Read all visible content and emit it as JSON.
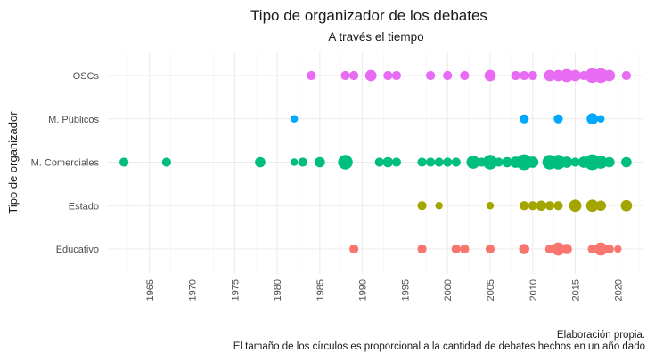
{
  "chart_data": {
    "type": "scatter",
    "title": "Tipo de organizador de los debates",
    "subtitle": "A través el tiempo",
    "xlabel": "",
    "ylabel": "Tipo de organizador",
    "xlim": [
      1960,
      2023
    ],
    "x_ticks": [
      1965,
      1970,
      1975,
      1980,
      1985,
      1990,
      1995,
      2000,
      2005,
      2010,
      2015,
      2020
    ],
    "categories": [
      "OSCs",
      "M. Públicos",
      "M. Comerciales",
      "Estado",
      "Educativo"
    ],
    "grid": true,
    "legend": "none",
    "caption_lines": [
      "Elaboración propia.",
      "El tamaño de los círculos es proporcional a la cantidad de debates hechos en un año dado"
    ],
    "series": [
      {
        "category": "OSCs",
        "color": "#e76bf3",
        "points": [
          {
            "x": 1984,
            "size": 1
          },
          {
            "x": 1988,
            "size": 1
          },
          {
            "x": 1989,
            "size": 1
          },
          {
            "x": 1991,
            "size": 2
          },
          {
            "x": 1993,
            "size": 1
          },
          {
            "x": 1994,
            "size": 1
          },
          {
            "x": 1998,
            "size": 1
          },
          {
            "x": 2000,
            "size": 1
          },
          {
            "x": 2002,
            "size": 1
          },
          {
            "x": 2005,
            "size": 2
          },
          {
            "x": 2008,
            "size": 1
          },
          {
            "x": 2009,
            "size": 1
          },
          {
            "x": 2010,
            "size": 1
          },
          {
            "x": 2012,
            "size": 2
          },
          {
            "x": 2013,
            "size": 2
          },
          {
            "x": 2014,
            "size": 3
          },
          {
            "x": 2015,
            "size": 2
          },
          {
            "x": 2016,
            "size": 1
          },
          {
            "x": 2017,
            "size": 4
          },
          {
            "x": 2018,
            "size": 4
          },
          {
            "x": 2019,
            "size": 2
          },
          {
            "x": 2021,
            "size": 1
          }
        ]
      },
      {
        "category": "M. Públicos",
        "color": "#00a9ff",
        "points": [
          {
            "x": 1982,
            "size": 0.5
          },
          {
            "x": 2009,
            "size": 1
          },
          {
            "x": 2013,
            "size": 1
          },
          {
            "x": 2017,
            "size": 2
          },
          {
            "x": 2018,
            "size": 0.5
          }
        ]
      },
      {
        "category": "M. Comerciales",
        "color": "#00be7d",
        "points": [
          {
            "x": 1962,
            "size": 1
          },
          {
            "x": 1967,
            "size": 1
          },
          {
            "x": 1978,
            "size": 1.5
          },
          {
            "x": 1982,
            "size": 0.5
          },
          {
            "x": 1983,
            "size": 1
          },
          {
            "x": 1985,
            "size": 1.5
          },
          {
            "x": 1988,
            "size": 4
          },
          {
            "x": 1992,
            "size": 1
          },
          {
            "x": 1993,
            "size": 1.5
          },
          {
            "x": 1994,
            "size": 1
          },
          {
            "x": 1997,
            "size": 1
          },
          {
            "x": 1998,
            "size": 1
          },
          {
            "x": 1999,
            "size": 1
          },
          {
            "x": 2000,
            "size": 1
          },
          {
            "x": 2001,
            "size": 1
          },
          {
            "x": 2003,
            "size": 3
          },
          {
            "x": 2004,
            "size": 1
          },
          {
            "x": 2005,
            "size": 4
          },
          {
            "x": 2006,
            "size": 1
          },
          {
            "x": 2007,
            "size": 1.5
          },
          {
            "x": 2008,
            "size": 2
          },
          {
            "x": 2009,
            "size": 5
          },
          {
            "x": 2010,
            "size": 2
          },
          {
            "x": 2012,
            "size": 4
          },
          {
            "x": 2013,
            "size": 4
          },
          {
            "x": 2014,
            "size": 2
          },
          {
            "x": 2015,
            "size": 1
          },
          {
            "x": 2016,
            "size": 2
          },
          {
            "x": 2017,
            "size": 5
          },
          {
            "x": 2018,
            "size": 3
          },
          {
            "x": 2019,
            "size": 1.5
          },
          {
            "x": 2021,
            "size": 1.5
          }
        ]
      },
      {
        "category": "Estado",
        "color": "#a3a500",
        "points": [
          {
            "x": 1997,
            "size": 1
          },
          {
            "x": 1999,
            "size": 0.5
          },
          {
            "x": 2005,
            "size": 0.5
          },
          {
            "x": 2009,
            "size": 1
          },
          {
            "x": 2010,
            "size": 1
          },
          {
            "x": 2011,
            "size": 1.5
          },
          {
            "x": 2012,
            "size": 1
          },
          {
            "x": 2013,
            "size": 1
          },
          {
            "x": 2015,
            "size": 2.5
          },
          {
            "x": 2017,
            "size": 2.5
          },
          {
            "x": 2018,
            "size": 1.5
          },
          {
            "x": 2021,
            "size": 2
          }
        ]
      },
      {
        "category": "Educativo",
        "color": "#f8766d",
        "points": [
          {
            "x": 1989,
            "size": 1
          },
          {
            "x": 1997,
            "size": 1
          },
          {
            "x": 2001,
            "size": 1
          },
          {
            "x": 2002,
            "size": 1
          },
          {
            "x": 2005,
            "size": 1
          },
          {
            "x": 2009,
            "size": 1.5
          },
          {
            "x": 2012,
            "size": 1
          },
          {
            "x": 2013,
            "size": 3
          },
          {
            "x": 2014,
            "size": 1.5
          },
          {
            "x": 2017,
            "size": 1
          },
          {
            "x": 2018,
            "size": 3
          },
          {
            "x": 2019,
            "size": 1
          },
          {
            "x": 2020,
            "size": 0.5
          }
        ]
      }
    ]
  }
}
